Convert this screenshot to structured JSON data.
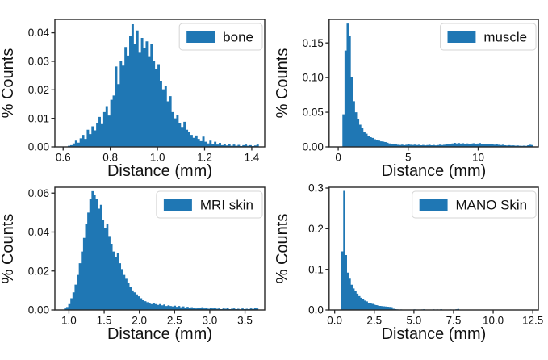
{
  "figure": {
    "background": "#ffffff",
    "bar_color": "#1f77b4",
    "spine_color": "#262626",
    "text_color": "#111111",
    "legend_border_color": "#d4d4d4"
  },
  "chart_data": [
    {
      "type": "bar",
      "legend": "bone",
      "xlabel": "Distance (mm)",
      "ylabel": "% Counts",
      "xlim": [
        0.565,
        1.455
      ],
      "ylim": [
        0,
        0.0447
      ],
      "xticks": [
        0.6,
        0.8,
        1.0,
        1.2,
        1.4
      ],
      "xtick_labels": [
        "0.6",
        "0.8",
        "1.0",
        "1.2",
        "1.4"
      ],
      "yticks": [
        0.0,
        0.01,
        0.02,
        0.03,
        0.04
      ],
      "ytick_labels": [
        "0.00",
        "0.01",
        "0.02",
        "0.03",
        "0.04"
      ],
      "bin_start": 0.62,
      "bin_width": 0.01,
      "values": [
        0.0004,
        0.0006,
        0.0012,
        0.0022,
        0.0015,
        0.003,
        0.0042,
        0.0028,
        0.006,
        0.0045,
        0.0072,
        0.0058,
        0.0082,
        0.0105,
        0.008,
        0.0122,
        0.0143,
        0.011,
        0.0165,
        0.018,
        0.0282,
        0.022,
        0.03,
        0.0285,
        0.035,
        0.032,
        0.039,
        0.043,
        0.036,
        0.0408,
        0.033,
        0.0382,
        0.0345,
        0.037,
        0.0318,
        0.036,
        0.03,
        0.0272,
        0.029,
        0.0232,
        0.0202,
        0.0212,
        0.016,
        0.0178,
        0.0122,
        0.01,
        0.0112,
        0.0082,
        0.007,
        0.0088,
        0.006,
        0.0052,
        0.0042,
        0.0032,
        0.004,
        0.0028,
        0.002,
        0.0036,
        0.0018,
        0.0012,
        0.0022,
        0.001,
        0.0018,
        0.0008,
        0.0014,
        0.0006,
        0.001,
        0.0005,
        0.001,
        0.0004,
        0.0008,
        0.0004,
        0.0007,
        0.0003,
        0.0006,
        0.0008,
        0.0004,
        0.0006,
        0.0003,
        0.0005,
        0.0008
      ]
    },
    {
      "type": "bar",
      "legend": "muscle",
      "xlabel": "Distance (mm)",
      "ylabel": "% Counts",
      "xlim": [
        -0.65,
        14.3
      ],
      "ylim": [
        0,
        0.184
      ],
      "xticks": [
        0,
        5,
        10
      ],
      "xtick_labels": [
        "0",
        "5",
        "10"
      ],
      "yticks": [
        0.0,
        0.05,
        0.1,
        0.15
      ],
      "ytick_labels": [
        "0.00",
        "0.05",
        "0.10",
        "0.15"
      ],
      "bin_start": 0.3,
      "bin_width": 0.15,
      "values": [
        0.047,
        0.139,
        0.178,
        0.16,
        0.101,
        0.066,
        0.05,
        0.04,
        0.032,
        0.027,
        0.022,
        0.019,
        0.016,
        0.014,
        0.013,
        0.011,
        0.01,
        0.009,
        0.008,
        0.0075,
        0.007,
        0.006,
        0.005,
        0.0045,
        0.004,
        0.0035,
        0.003,
        0.0028,
        0.0032,
        0.0025,
        0.003,
        0.0035,
        0.003,
        0.0028,
        0.0032,
        0.0026,
        0.003,
        0.0024,
        0.0028,
        0.0022,
        0.0026,
        0.003,
        0.0024,
        0.0028,
        0.0022,
        0.0026,
        0.0032,
        0.0026,
        0.003,
        0.0035,
        0.004,
        0.0045,
        0.005,
        0.0058,
        0.005,
        0.0055,
        0.0048,
        0.0052,
        0.0045,
        0.005,
        0.0042,
        0.0048,
        0.0052,
        0.0044,
        0.0048,
        0.0055,
        0.0042,
        0.0046,
        0.004,
        0.0044,
        0.0036,
        0.004,
        0.0032,
        0.0036,
        0.003,
        0.0026,
        0.003,
        0.0024,
        0.0021,
        0.0025,
        0.002,
        0.0022,
        0.0018,
        0.002,
        0.0016,
        0.0015,
        0.0018,
        0.0014,
        0.0024,
        0.003,
        0.0026
      ]
    },
    {
      "type": "bar",
      "legend": "MRI skin",
      "xlabel": "Distance (mm)",
      "ylabel": "% Counts",
      "xlim": [
        0.8,
        3.78
      ],
      "ylim": [
        0,
        0.063
      ],
      "xticks": [
        1.0,
        1.5,
        2.0,
        2.5,
        3.0,
        3.5
      ],
      "xtick_labels": [
        "1.0",
        "1.5",
        "2.0",
        "2.5",
        "3.0",
        "3.5"
      ],
      "yticks": [
        0.0,
        0.02,
        0.04,
        0.06
      ],
      "ytick_labels": [
        "0.00",
        "0.02",
        "0.04",
        "0.06"
      ],
      "bin_start": 0.93,
      "bin_width": 0.03,
      "values": [
        0.0008,
        0.0015,
        0.003,
        0.006,
        0.009,
        0.013,
        0.018,
        0.024,
        0.03,
        0.037,
        0.044,
        0.05,
        0.057,
        0.061,
        0.059,
        0.057,
        0.052,
        0.054,
        0.046,
        0.042,
        0.044,
        0.038,
        0.034,
        0.03,
        0.027,
        0.029,
        0.024,
        0.021,
        0.018,
        0.016,
        0.014,
        0.012,
        0.01,
        0.009,
        0.008,
        0.007,
        0.006,
        0.005,
        0.0045,
        0.004,
        0.0035,
        0.003,
        0.0035,
        0.003,
        0.0026,
        0.003,
        0.0024,
        0.0028,
        0.002,
        0.0024,
        0.002,
        0.0018,
        0.0022,
        0.0016,
        0.002,
        0.0014,
        0.0018,
        0.0012,
        0.0016,
        0.001,
        0.0014,
        0.0012,
        0.0008,
        0.0012,
        0.001,
        0.0014,
        0.0008,
        0.001,
        0.0006,
        0.0012,
        0.0008,
        0.001,
        0.0006,
        0.0008,
        0.0004,
        0.0008,
        0.0006,
        0.001,
        0.0004,
        0.0006,
        0.0008,
        0.0004,
        0.0006,
        0.0003,
        0.0008,
        0.0004,
        0.0006,
        0.0004,
        0.0008,
        0.0005,
        0.001,
        0.0008
      ]
    },
    {
      "type": "bar",
      "legend": "MANO Skin",
      "xlabel": "Distance (mm)",
      "ylabel": "% Counts",
      "xlim": [
        -0.35,
        12.85
      ],
      "ylim": [
        0,
        0.302
      ],
      "xticks": [
        0.0,
        2.5,
        5.0,
        7.5,
        10.0,
        12.5
      ],
      "xtick_labels": [
        "0.0",
        "2.5",
        "5.0",
        "7.5",
        "10.0",
        "12.5"
      ],
      "yticks": [
        0.0,
        0.1,
        0.2,
        0.3
      ],
      "ytick_labels": [
        "0.0",
        "0.1",
        "0.2",
        "0.3"
      ],
      "bin_start": 0.42,
      "bin_width": 0.12,
      "values": [
        0.144,
        0.293,
        0.135,
        0.092,
        0.077,
        0.062,
        0.053,
        0.046,
        0.04,
        0.034,
        0.03,
        0.026,
        0.023,
        0.021,
        0.018,
        0.016,
        0.015,
        0.013,
        0.012,
        0.011,
        0.01,
        0.0095,
        0.009,
        0.0085,
        0.008,
        0.0075,
        0.007,
        0.003,
        0.002,
        0.0015,
        0.001,
        0.0012,
        0.0008,
        0.001,
        0.0006,
        0.0008,
        0.0004,
        0.0008,
        0.0015,
        0.0005,
        0.001,
        0.0004,
        0.0012,
        0.0018,
        0.0006,
        0.001,
        0.0004,
        0.0008,
        0.0015,
        0.0005,
        0.0012,
        0.0006,
        0.0018,
        0.0008,
        0.0004,
        0.001,
        0.0006,
        0.0012,
        0.0004,
        0.0008,
        0.0018,
        0.0025,
        0.0008,
        0.0004,
        0,
        0,
        0.0003,
        0,
        0,
        0,
        0.0003,
        0,
        0,
        0,
        0,
        0.0002,
        0,
        0,
        0,
        0,
        0,
        0,
        0,
        0,
        0,
        0,
        0,
        0,
        0,
        0,
        0,
        0,
        0,
        0,
        0,
        0,
        0,
        0,
        0,
        0
      ]
    }
  ]
}
